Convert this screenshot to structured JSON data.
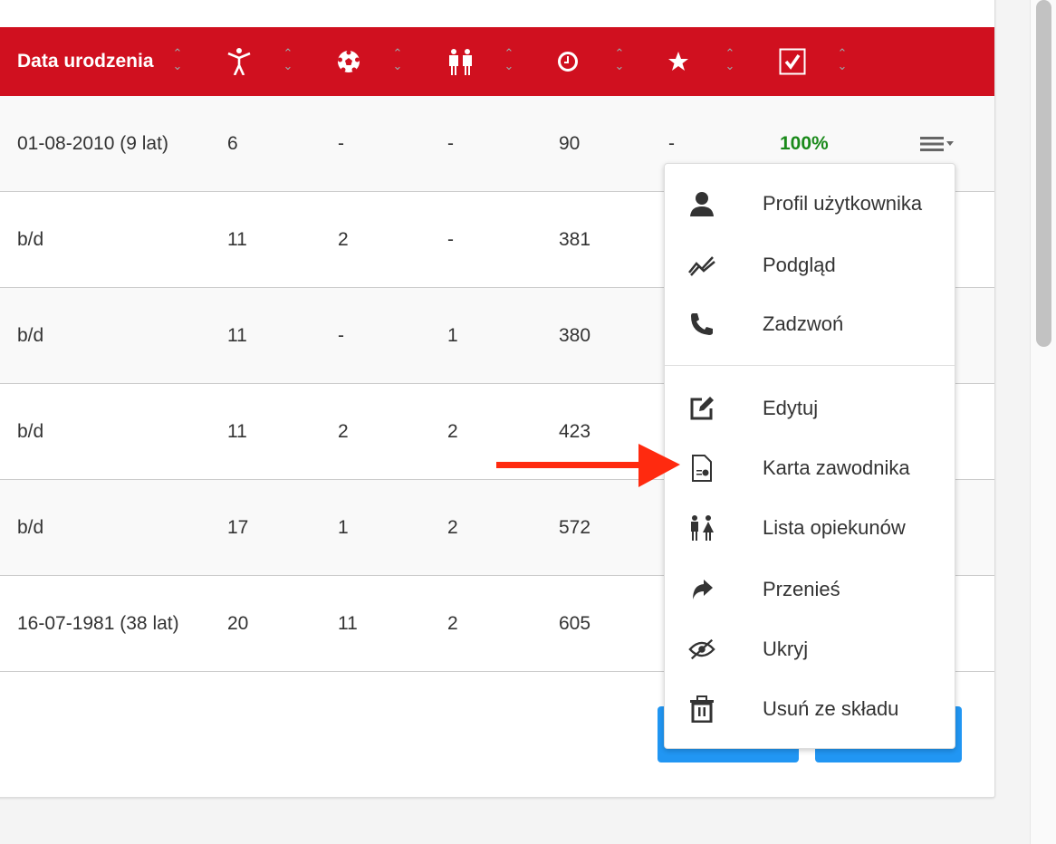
{
  "table": {
    "headers": [
      {
        "label": "Data urodzenia"
      },
      {
        "icon": "person-icon"
      },
      {
        "icon": "soccer-ball-icon"
      },
      {
        "icon": "parents-icon"
      },
      {
        "icon": "clock-icon"
      },
      {
        "icon": "star-icon"
      },
      {
        "icon": "checkbox-icon"
      }
    ],
    "rows": [
      [
        "01-08-2010 (9 lat)",
        "6",
        "-",
        "-",
        "90",
        "-",
        "100%"
      ],
      [
        "b/d",
        "11",
        "2",
        "-",
        "381",
        "",
        ""
      ],
      [
        "b/d",
        "11",
        "-",
        "1",
        "380",
        "",
        ""
      ],
      [
        "b/d",
        "11",
        "2",
        "2",
        "423",
        "",
        ""
      ],
      [
        "b/d",
        "17",
        "1",
        "2",
        "572",
        "",
        ""
      ],
      [
        "16-07-1981 (38 lat)",
        "20",
        "11",
        "2",
        "605",
        "",
        ""
      ]
    ]
  },
  "menu": {
    "items": [
      {
        "label": "Profil użytkownika",
        "icon": "user-icon"
      },
      {
        "label": "Podgląd",
        "icon": "chart-line-icon"
      },
      {
        "label": "Zadzwoń",
        "icon": "phone-icon"
      },
      {
        "label": "Edytuj",
        "icon": "edit-icon"
      },
      {
        "label": "Karta zawodnika",
        "icon": "file-chart-icon"
      },
      {
        "label": "Lista opiekunów",
        "icon": "parents-icon"
      },
      {
        "label": "Przenieś",
        "icon": "share-icon"
      },
      {
        "label": "Ukryj",
        "icon": "eye-slash-icon"
      },
      {
        "label": "Usuń ze składu",
        "icon": "trash-icon"
      }
    ]
  },
  "colors": {
    "header": "#d0101f",
    "accent": "#2196f3",
    "success": "#1a8a1a",
    "annotation_arrow": "#ff2a0f"
  }
}
